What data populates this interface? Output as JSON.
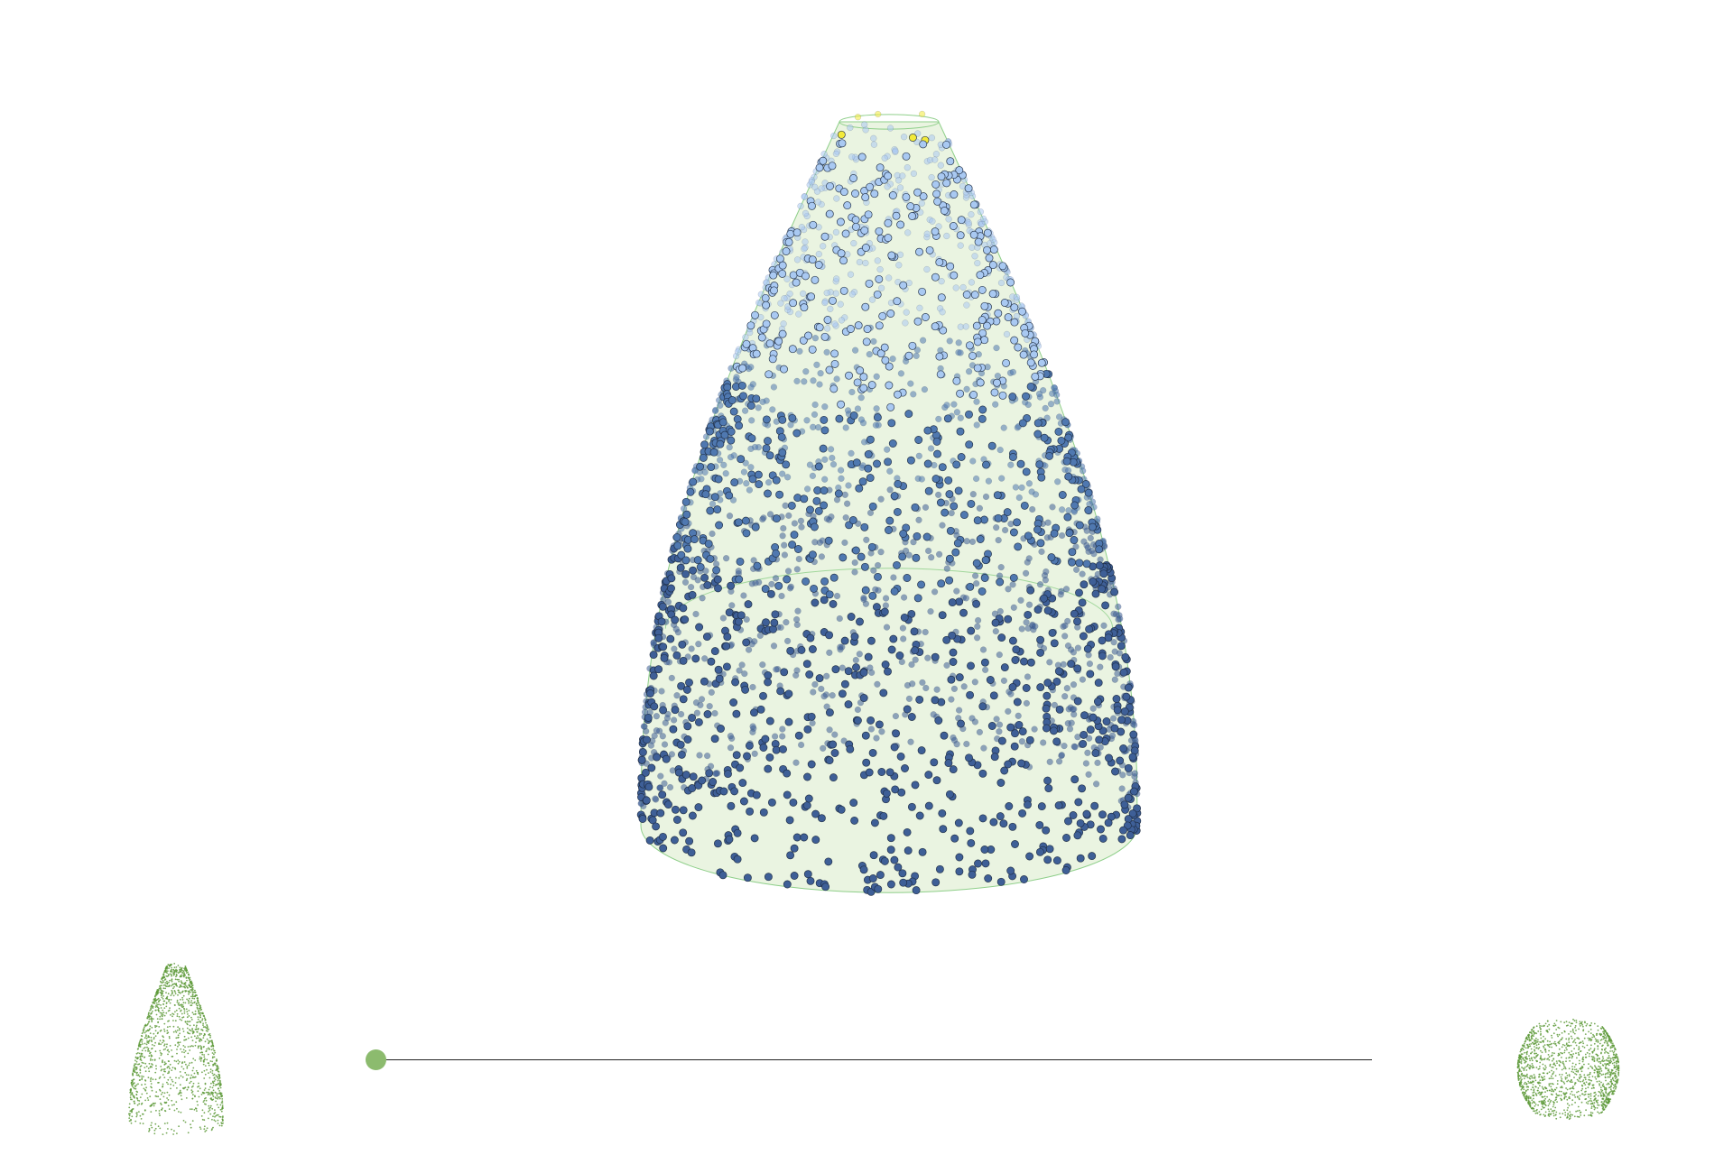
{
  "viewer": {
    "colors": {
      "background": "#ffffff",
      "surface_fill": "#e6f2dc",
      "surface_edge": "#8fcf8a",
      "point_top": "#f2ea3a",
      "point_high": "#a9c9f2",
      "point_mid": "#4f78b0",
      "point_low": "#3e5f97",
      "point_outline": "#1c2a40"
    }
  },
  "slider": {
    "value": 0,
    "knob_color": "#8cbb6e",
    "track_color": "#222222"
  },
  "thumbnails": {
    "start_shape": "tapered-cone-point-cloud",
    "end_shape": "squat-barrel-point-cloud",
    "color": "#5e9a3a"
  }
}
